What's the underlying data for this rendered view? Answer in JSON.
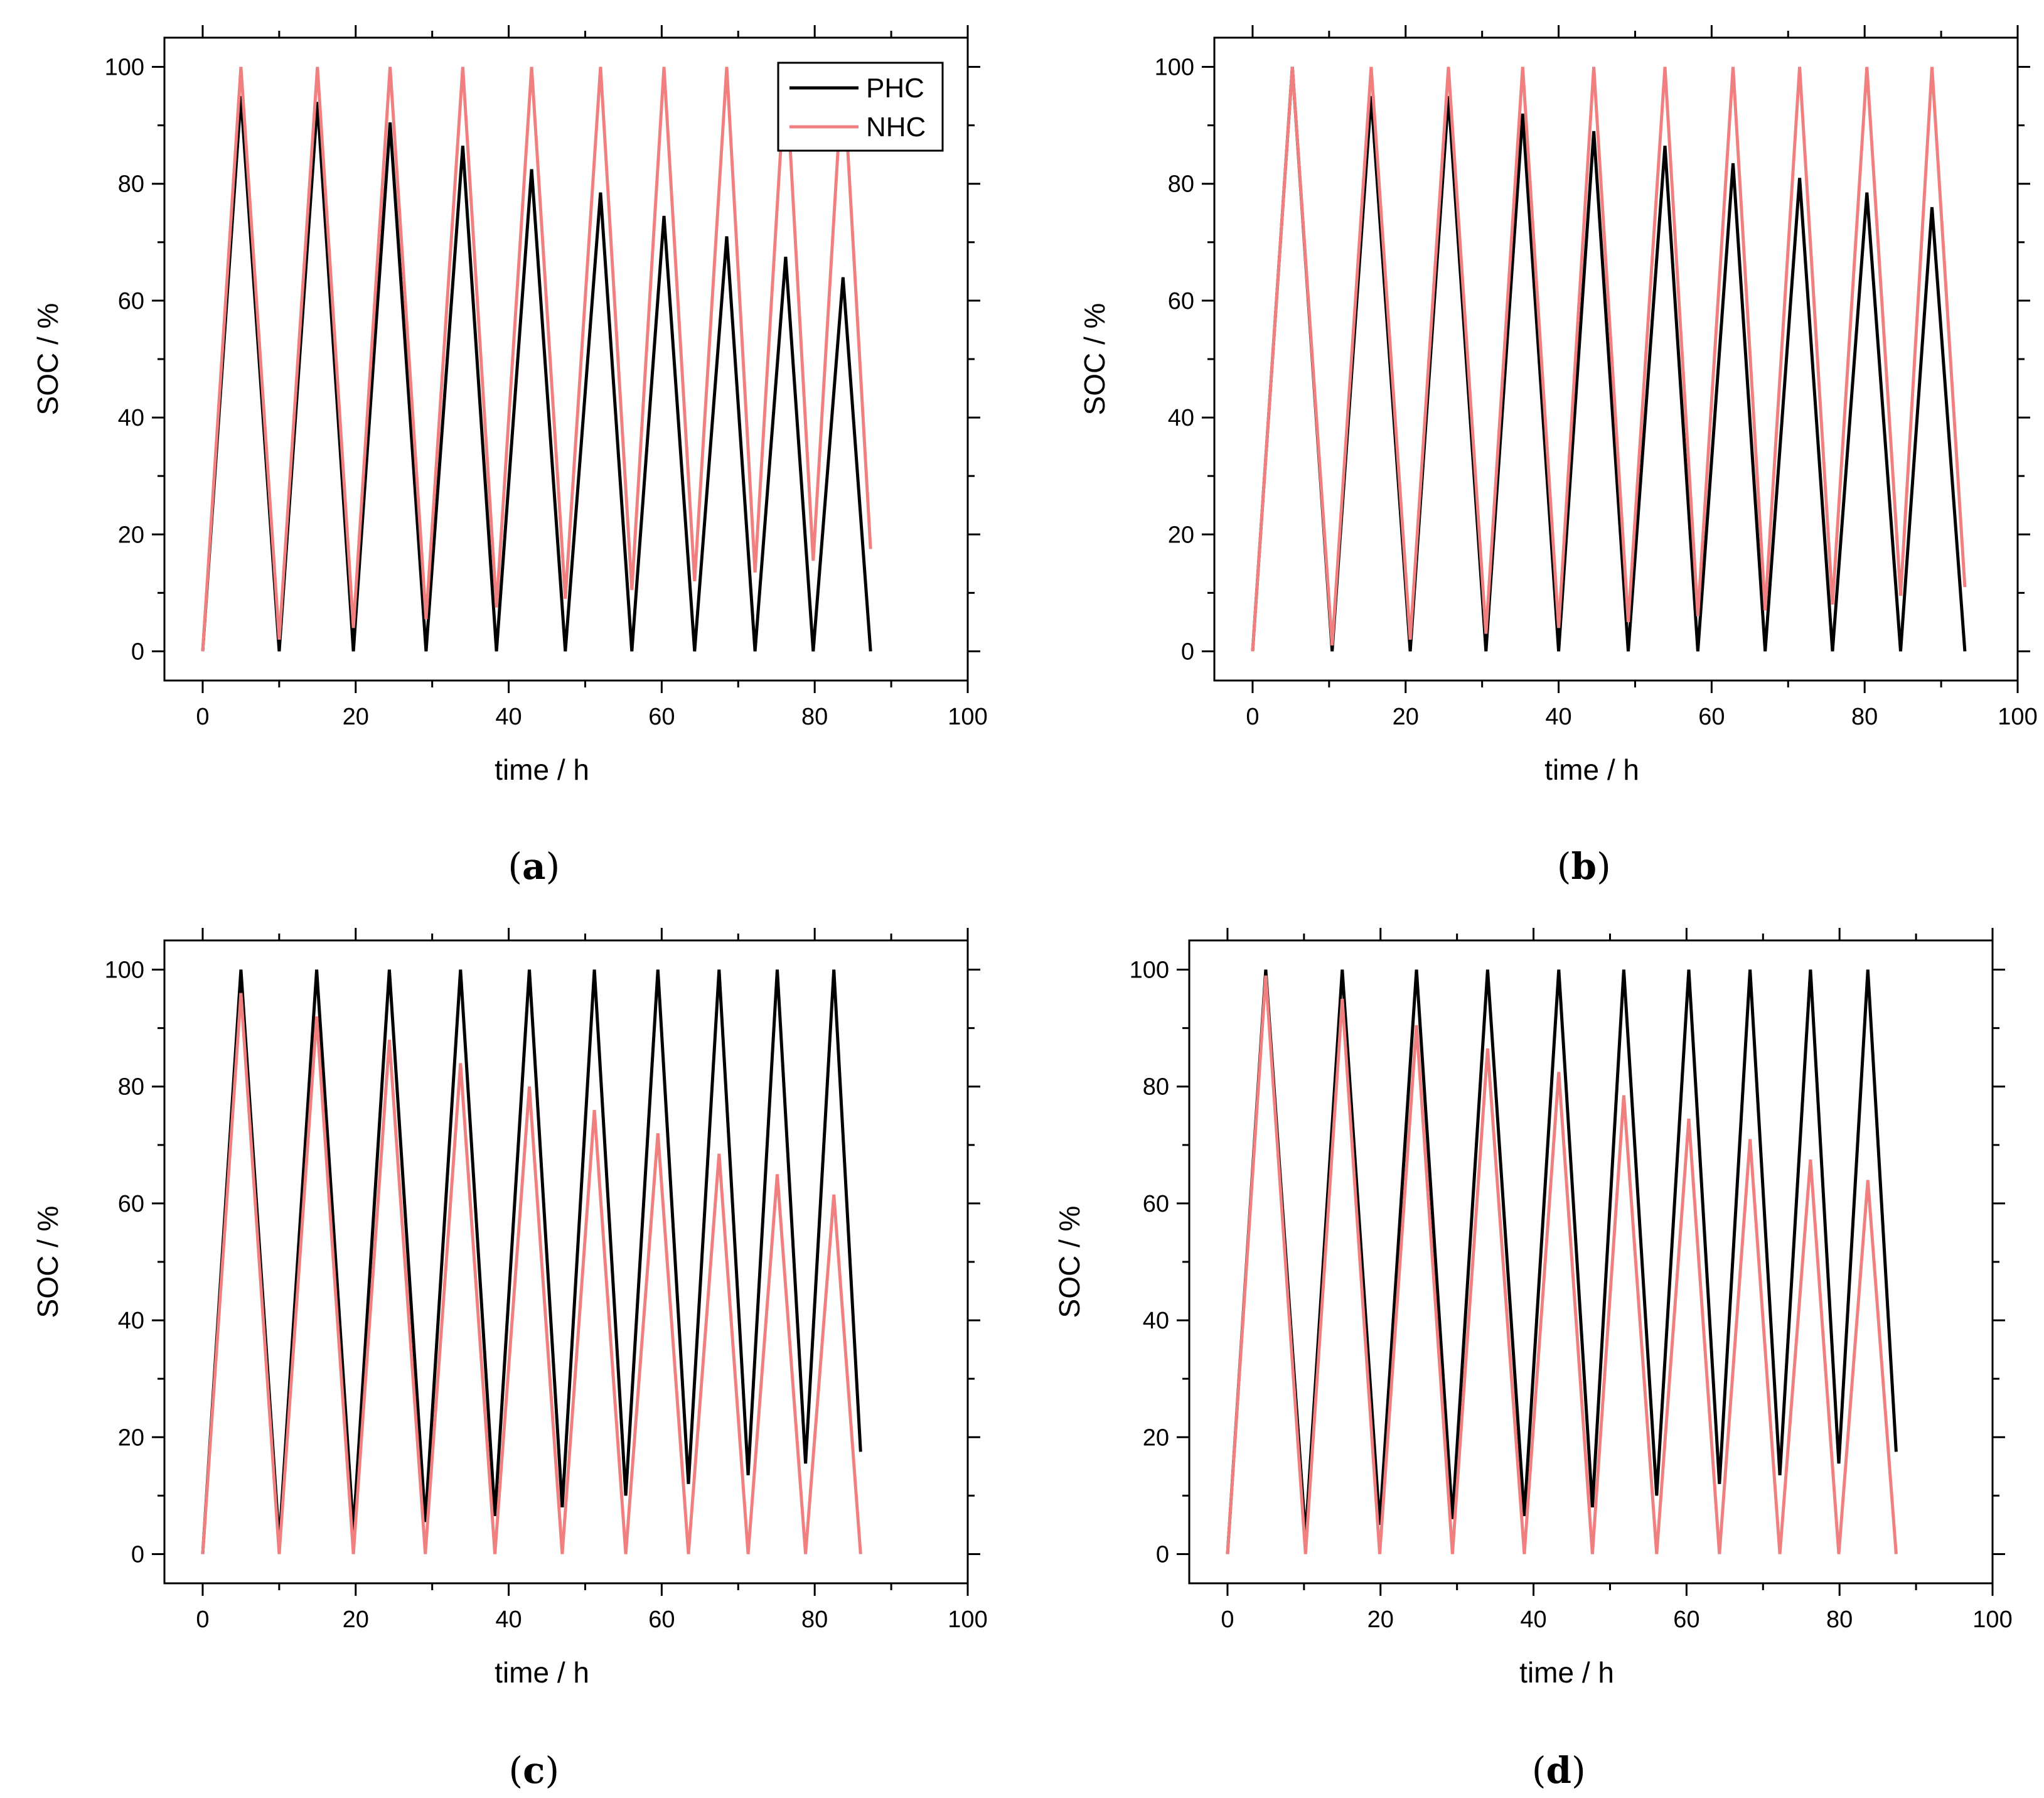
{
  "colors": {
    "PHC": "#000000",
    "NHC": "#f08080"
  },
  "chart_data": [
    {
      "id": "a",
      "type": "line",
      "panel_label": "a",
      "xlabel": "time / h",
      "ylabel": "SOC / %",
      "xlim": [
        -5,
        100
      ],
      "ylim": [
        -5,
        105
      ],
      "xticks": [
        "0",
        "20",
        "40",
        "60",
        "80",
        "100"
      ],
      "yticks": [
        "0",
        "20",
        "40",
        "60",
        "80",
        "100"
      ],
      "legend": {
        "position": "top-right",
        "entries": [
          "PHC",
          "NHC"
        ]
      },
      "series": [
        {
          "name": "PHC",
          "x": [
            0,
            5,
            10,
            15,
            19.7,
            24.5,
            29.2,
            34,
            38.4,
            43,
            47.4,
            52,
            56.1,
            60.3,
            64.3,
            68.5,
            72.2,
            76.2,
            79.8,
            83.7,
            87.3
          ],
          "y": [
            0,
            95,
            0,
            94,
            0,
            90.5,
            0,
            86.5,
            0,
            82.5,
            0,
            78.5,
            0,
            74.5,
            0,
            71,
            0,
            67.5,
            0,
            64,
            0
          ]
        },
        {
          "name": "NHC",
          "x": [
            0,
            5,
            10,
            15,
            19.7,
            24.5,
            29.2,
            34,
            38.4,
            43,
            47.4,
            52,
            56.1,
            60.3,
            64.3,
            68.5,
            72.2,
            76.2,
            79.8,
            83.7,
            87.3
          ],
          "y": [
            0,
            100,
            2,
            100,
            4,
            100,
            5.5,
            100,
            7.5,
            100,
            9,
            100,
            10.5,
            100,
            12,
            100,
            13.5,
            100,
            15.5,
            100,
            17.5
          ]
        }
      ]
    },
    {
      "id": "b",
      "type": "line",
      "panel_label": "b",
      "xlabel": "time / h",
      "ylabel": "SOC / %",
      "xlim": [
        -5,
        100
      ],
      "ylim": [
        -5,
        105
      ],
      "xticks": [
        "0",
        "20",
        "40",
        "60",
        "80",
        "100"
      ],
      "yticks": [
        "0",
        "20",
        "40",
        "60",
        "80",
        "100"
      ],
      "series": [
        {
          "name": "PHC",
          "x": [
            0,
            5.2,
            10.4,
            15.5,
            20.6,
            25.6,
            30.5,
            35.3,
            40,
            44.6,
            49.1,
            53.9,
            58.2,
            62.8,
            67,
            71.5,
            75.8,
            80.3,
            84.7,
            88.8,
            93.1
          ],
          "y": [
            0,
            100,
            0,
            95,
            0,
            95,
            0,
            92,
            0,
            89,
            0,
            86.5,
            0,
            83.5,
            0,
            81,
            0,
            78.5,
            0,
            76,
            0
          ]
        },
        {
          "name": "NHC",
          "x": [
            0,
            5.2,
            10.4,
            15.5,
            20.6,
            25.6,
            30.5,
            35.3,
            40,
            44.6,
            49.1,
            53.9,
            58.2,
            62.8,
            67,
            71.5,
            75.8,
            80.3,
            84.7,
            88.8,
            93.1
          ],
          "y": [
            0,
            100,
            1,
            100,
            2,
            100,
            3,
            100,
            4,
            100,
            5,
            100,
            6,
            100,
            7,
            100,
            8,
            100,
            9.5,
            100,
            11
          ]
        }
      ]
    },
    {
      "id": "c",
      "type": "line",
      "panel_label": "c",
      "xlabel": "time / h",
      "ylabel": "SOC / %",
      "xlim": [
        -5,
        100
      ],
      "ylim": [
        -5,
        105
      ],
      "xticks": [
        "0",
        "20",
        "40",
        "60",
        "80",
        "100"
      ],
      "yticks": [
        "0",
        "20",
        "40",
        "60",
        "80",
        "100"
      ],
      "series": [
        {
          "name": "PHC",
          "x": [
            0,
            5,
            10,
            14.9,
            19.7,
            24.4,
            29.1,
            33.7,
            38.2,
            42.7,
            47,
            51.2,
            55.3,
            59.5,
            63.5,
            67.5,
            71.3,
            75.1,
            78.8,
            82.5,
            86
          ],
          "y": [
            0,
            100,
            2,
            100,
            4,
            100,
            5.5,
            100,
            6.5,
            100,
            8,
            100,
            10,
            100,
            12,
            100,
            13.5,
            100,
            15.5,
            100,
            17.5
          ]
        },
        {
          "name": "NHC",
          "x": [
            0,
            5,
            10,
            14.9,
            19.7,
            24.4,
            29.1,
            33.7,
            38.2,
            42.7,
            47,
            51.2,
            55.3,
            59.5,
            63.5,
            67.5,
            71.3,
            75.1,
            78.8,
            82.5,
            86
          ],
          "y": [
            0,
            96,
            0,
            92,
            0,
            88,
            0,
            84,
            0,
            80,
            0,
            76,
            0,
            72,
            0,
            68.5,
            0,
            65,
            0,
            61.5,
            0
          ]
        }
      ]
    },
    {
      "id": "d",
      "type": "line",
      "panel_label": "d",
      "xlabel": "time / h",
      "ylabel": "SOC / %",
      "xlim": [
        -5,
        100
      ],
      "ylim": [
        -5,
        105
      ],
      "xticks": [
        "0",
        "20",
        "40",
        "60",
        "80",
        "100"
      ],
      "yticks": [
        "0",
        "20",
        "40",
        "60",
        "80",
        "100"
      ],
      "series": [
        {
          "name": "PHC",
          "x": [
            0,
            5,
            10.2,
            15,
            19.9,
            24.7,
            29.4,
            34,
            38.8,
            43.3,
            47.7,
            51.8,
            56.1,
            60.3,
            64.3,
            68.3,
            72.2,
            76.2,
            79.9,
            83.7,
            87.4
          ],
          "y": [
            0,
            100,
            3,
            100,
            5,
            100,
            6,
            100,
            6.5,
            100,
            8,
            100,
            10,
            100,
            12,
            100,
            13.5,
            100,
            15.5,
            100,
            17.5
          ]
        },
        {
          "name": "NHC",
          "x": [
            0,
            5,
            10.2,
            15,
            19.9,
            24.7,
            29.4,
            34,
            38.8,
            43.3,
            47.7,
            51.8,
            56.1,
            60.3,
            64.3,
            68.3,
            72.2,
            76.2,
            79.9,
            83.7,
            87.4
          ],
          "y": [
            0,
            99,
            0,
            95,
            0,
            90.5,
            0,
            86.5,
            0,
            82.5,
            0,
            78.5,
            0,
            74.5,
            0,
            71,
            0,
            67.5,
            0,
            64,
            0
          ]
        }
      ]
    }
  ]
}
